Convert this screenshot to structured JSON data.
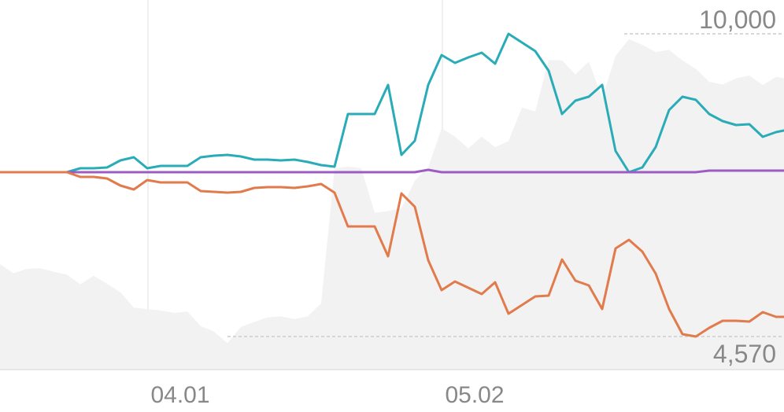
{
  "chart_data": {
    "type": "line",
    "x_tick_labels": [
      {
        "label": "04.01",
        "x_index": 11
      },
      {
        "label": "05.02",
        "x_index": 33
      }
    ],
    "y_markers": {
      "max": {
        "label": "10,000",
        "value": 10000,
        "from_index": 47
      },
      "min": {
        "label": "4,570",
        "value": 4570,
        "from_index": 17
      }
    },
    "y_range": [
      4100,
      10700
    ],
    "grid": {
      "vertical_at_ticks": true
    },
    "area_series": {
      "name": "",
      "color": "#e0e0e0",
      "values": [
        5985,
        5819,
        5898,
        5910,
        5847,
        5795,
        5622,
        5775,
        5630,
        5480,
        5206,
        5180,
        5156,
        5111,
        5137,
        4876,
        4776,
        4570,
        4860,
        4950,
        5033,
        5048,
        5001,
        5052,
        5281,
        7690,
        7724,
        7695,
        6900,
        6931,
        6983,
        7474,
        7709,
        8410,
        8260,
        8050,
        8260,
        8070,
        8180,
        8780,
        8710,
        9630,
        9620,
        9370,
        9600,
        8950,
        9700,
        10000,
        9900,
        9770,
        9810,
        9620,
        9470,
        9240,
        9190,
        9300,
        9350,
        9180,
        9330,
        9300
      ]
    },
    "series": [
      {
        "name": "",
        "color": "#2aacb8",
        "values": [
          5.0,
          5.0,
          5.0,
          5.0,
          5.0,
          5.0,
          5.3,
          5.3,
          5.5,
          6.2,
          6.6,
          5.5,
          5.7,
          5.7,
          5.7,
          6.5,
          6.7,
          6.8,
          6.6,
          6.2,
          6.2,
          6.2,
          6.2,
          6.0,
          5.5,
          5.4,
          14.0,
          14.0,
          14.0,
          19.5,
          8.3,
          10.0,
          19.0,
          25.0,
          24.0,
          25.0,
          25.5,
          24.0,
          29.0,
          28.0,
          26.5,
          23.0,
          14.0,
          16.5,
          17.0,
          19.5,
          7.5,
          5.0,
          5.5,
          8.0,
          14.5,
          17.0,
          16.5,
          14.5,
          13.0,
          12.5,
          12.5,
          11.0,
          11.5,
          11.8
        ]
      },
      {
        "name": "",
        "color": "#9c5cc4",
        "values": [
          5.0,
          5.0,
          5.0,
          5.0,
          5.0,
          5.0,
          5.0,
          5.0,
          5.0,
          5.0,
          5.0,
          5.0,
          5.0,
          5.0,
          5.0,
          5.0,
          5.0,
          5.0,
          5.0,
          5.0,
          5.0,
          5.0,
          5.0,
          5.0,
          5.0,
          5.0,
          5.0,
          5.0,
          5.0,
          5.0,
          5.0,
          5.0,
          5.4,
          5.0,
          5.0,
          5.0,
          5.0,
          5.0,
          5.0,
          5.0,
          5.0,
          5.0,
          5.0,
          5.0,
          5.0,
          5.0,
          5.0,
          5.0,
          5.0,
          5.0,
          5.0,
          5.0,
          5.0,
          5.2,
          5.2,
          5.2,
          5.2,
          5.2,
          5.2,
          5.2
        ]
      },
      {
        "name": "",
        "color": "#e27b4c",
        "values": [
          5.0,
          5.0,
          5.0,
          5.0,
          5.0,
          5.0,
          5.3,
          5.3,
          5.5,
          6.2,
          6.6,
          5.5,
          5.7,
          5.7,
          5.7,
          6.5,
          6.7,
          6.8,
          6.6,
          6.2,
          6.2,
          6.2,
          6.2,
          6.0,
          5.5,
          7.0,
          14.0,
          14.0,
          14.0,
          19.5,
          8.3,
          10.0,
          19.0,
          25.0,
          24.0,
          25.0,
          25.5,
          24.0,
          29.0,
          28.0,
          26.5,
          23.0,
          14.0,
          16.5,
          17.0,
          19.5,
          15.5,
          13.5,
          15.5,
          20.0,
          26.0,
          33.0,
          33.5,
          31.5,
          30.5,
          30.5,
          31.0,
          28.0,
          29.5,
          29.5
        ]
      }
    ]
  }
}
